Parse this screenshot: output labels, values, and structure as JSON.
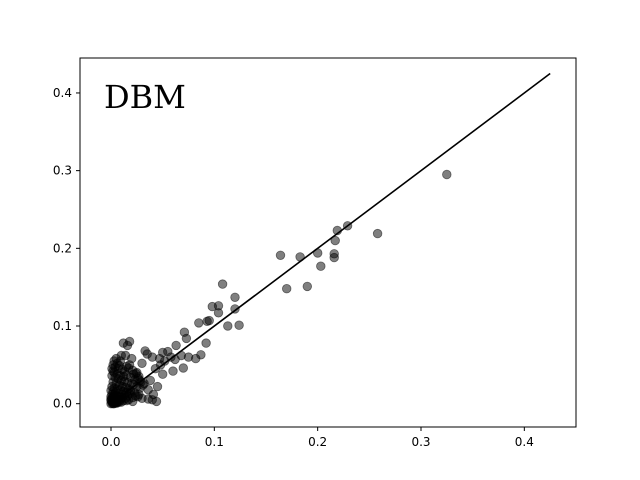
{
  "chart_data": {
    "type": "scatter",
    "annotation": "DBM",
    "title": "",
    "xlabel": "",
    "ylabel": "",
    "xlim": [
      -0.03,
      0.45
    ],
    "ylim": [
      -0.03,
      0.445
    ],
    "x_ticks": [
      0.0,
      0.1,
      0.2,
      0.3,
      0.4
    ],
    "y_ticks": [
      0.0,
      0.1,
      0.2,
      0.3,
      0.4
    ],
    "x_tick_labels": [
      "0.0",
      "0.1",
      "0.2",
      "0.3",
      "0.4"
    ],
    "y_tick_labels": [
      "0.0",
      "0.1",
      "0.2",
      "0.3",
      "0.4"
    ],
    "grid": false,
    "point_color": "#000000",
    "point_alpha": 0.5,
    "line_color": "#000000",
    "reference_line": {
      "x": [
        0.0,
        0.425
      ],
      "y": [
        0.0,
        0.425
      ]
    },
    "points": {
      "x": [
        0.325,
        0.258,
        0.229,
        0.219,
        0.217,
        0.216,
        0.216,
        0.2,
        0.203,
        0.19,
        0.183,
        0.17,
        0.164,
        0.108,
        0.12,
        0.104,
        0.098,
        0.104,
        0.095,
        0.093,
        0.12,
        0.124,
        0.113,
        0.092,
        0.087,
        0.085,
        0.071,
        0.073,
        0.063,
        0.068,
        0.075,
        0.07,
        0.082,
        0.055,
        0.058,
        0.062,
        0.06,
        0.05,
        0.047,
        0.04,
        0.035,
        0.033,
        0.03,
        0.043,
        0.048,
        0.052,
        0.038,
        0.027,
        0.025,
        0.02,
        0.018,
        0.016,
        0.014,
        0.012,
        0.018,
        0.007,
        0.009,
        0.015,
        0.022,
        0.028,
        0.032,
        0.045,
        0.041,
        0.036,
        0.05,
        0.01,
        0.005,
        0.003,
        0.002,
        0.004,
        0.006,
        0.008,
        0.011,
        0.013,
        0.017,
        0.021,
        0.024,
        0.001,
        0.002,
        0.003,
        0.006,
        0.009,
        0.012,
        0.015,
        0.019,
        0.023,
        0.026,
        0.029,
        0.031,
        0.001,
        0.004,
        0.007,
        0.01,
        0.013,
        0.016,
        0.02,
        0.022,
        0.025,
        0.028,
        0.002,
        0.005,
        0.008,
        0.011,
        0.014,
        0.017,
        0.019,
        0.001,
        0.003,
        0.006,
        0.009,
        0.012,
        0.015,
        0.018,
        0.0,
        0.002,
        0.004,
        0.007,
        0.01,
        0.013,
        0.016,
        0.001,
        0.003,
        0.005,
        0.008,
        0.011,
        0.014,
        0.0,
        0.002,
        0.004,
        0.006,
        0.009,
        0.012,
        0.001,
        0.003,
        0.005,
        0.007,
        0.01,
        0.0,
        0.002,
        0.004,
        0.006,
        0.008,
        0.001,
        0.003,
        0.005,
        0.0,
        0.002,
        0.004,
        0.001,
        0.003,
        0.0,
        0.002,
        0.021,
        0.024,
        0.027,
        0.03,
        0.019,
        0.023,
        0.026,
        0.017,
        0.021,
        0.015,
        0.036,
        0.04,
        0.044
      ],
      "y": [
        0.295,
        0.219,
        0.229,
        0.223,
        0.21,
        0.193,
        0.188,
        0.194,
        0.177,
        0.151,
        0.189,
        0.148,
        0.191,
        0.154,
        0.137,
        0.126,
        0.125,
        0.117,
        0.107,
        0.106,
        0.122,
        0.101,
        0.1,
        0.078,
        0.063,
        0.104,
        0.092,
        0.084,
        0.075,
        0.062,
        0.06,
        0.046,
        0.058,
        0.067,
        0.06,
        0.057,
        0.042,
        0.066,
        0.058,
        0.06,
        0.064,
        0.068,
        0.052,
        0.045,
        0.05,
        0.055,
        0.03,
        0.035,
        0.04,
        0.058,
        0.08,
        0.075,
        0.062,
        0.078,
        0.05,
        0.045,
        0.055,
        0.048,
        0.038,
        0.03,
        0.026,
        0.022,
        0.012,
        0.018,
        0.038,
        0.062,
        0.058,
        0.055,
        0.05,
        0.047,
        0.052,
        0.049,
        0.044,
        0.041,
        0.046,
        0.043,
        0.039,
        0.045,
        0.042,
        0.04,
        0.038,
        0.036,
        0.035,
        0.037,
        0.034,
        0.031,
        0.033,
        0.028,
        0.024,
        0.036,
        0.034,
        0.032,
        0.03,
        0.029,
        0.027,
        0.026,
        0.025,
        0.022,
        0.02,
        0.028,
        0.026,
        0.024,
        0.022,
        0.021,
        0.019,
        0.017,
        0.022,
        0.02,
        0.019,
        0.018,
        0.016,
        0.015,
        0.013,
        0.017,
        0.016,
        0.014,
        0.013,
        0.012,
        0.011,
        0.01,
        0.012,
        0.011,
        0.01,
        0.009,
        0.008,
        0.007,
        0.009,
        0.008,
        0.007,
        0.006,
        0.005,
        0.004,
        0.006,
        0.005,
        0.004,
        0.003,
        0.002,
        0.004,
        0.003,
        0.002,
        0.001,
        0.002,
        0.001,
        0.0,
        0.001,
        0.0,
        0.0,
        0.001,
        0.003,
        0.005,
        0.006,
        0.002,
        0.008,
        0.01,
        0.012,
        0.007,
        0.015,
        0.014,
        0.009,
        0.005,
        0.003,
        0.004,
        0.006,
        0.005,
        0.003
      ]
    }
  }
}
